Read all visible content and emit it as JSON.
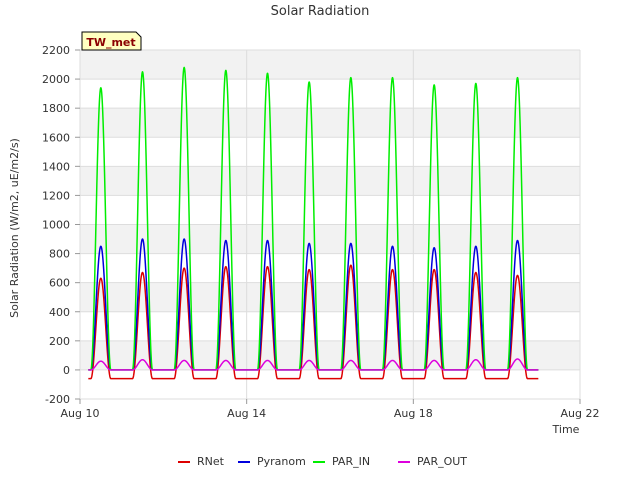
{
  "chart_data": {
    "type": "line",
    "title": "Solar Radiation",
    "xlabel": "Time",
    "ylabel": "Solar Radiation (W/m2, uE/m2/s)",
    "badge": "TW_met",
    "xlim": [
      "Aug 10",
      "Aug 22"
    ],
    "x_ticks": [
      "Aug 10",
      "Aug 14",
      "Aug 18",
      "Aug 22"
    ],
    "ylim": [
      -200,
      2200
    ],
    "y_ticks": [
      -200,
      0,
      200,
      400,
      600,
      800,
      1000,
      1200,
      1400,
      1600,
      1800,
      2000,
      2200
    ],
    "grid": true,
    "legend_position": "bottom",
    "peak_days": [
      "Aug 10",
      "Aug 11",
      "Aug 12",
      "Aug 13",
      "Aug 14",
      "Aug 15",
      "Aug 16",
      "Aug 17",
      "Aug 18",
      "Aug 19",
      "Aug 20"
    ],
    "series": [
      {
        "name": "RNet",
        "color": "#dd0000",
        "night_value": -60,
        "peaks": [
          630,
          670,
          700,
          710,
          710,
          690,
          720,
          690,
          690,
          670,
          650
        ]
      },
      {
        "name": "Pyranom",
        "color": "#0000dd",
        "night_value": 0,
        "peaks": [
          850,
          900,
          900,
          890,
          890,
          870,
          870,
          850,
          840,
          850,
          890
        ]
      },
      {
        "name": "PAR_IN",
        "color": "#00ee00",
        "night_value": 0,
        "peaks": [
          1940,
          2050,
          2080,
          2060,
          2040,
          1980,
          2010,
          2010,
          1960,
          1970,
          2010
        ]
      },
      {
        "name": "PAR_OUT",
        "color": "#dd00dd",
        "night_value": 0,
        "peaks": [
          60,
          70,
          65,
          65,
          65,
          65,
          65,
          65,
          65,
          70,
          75
        ]
      }
    ]
  }
}
